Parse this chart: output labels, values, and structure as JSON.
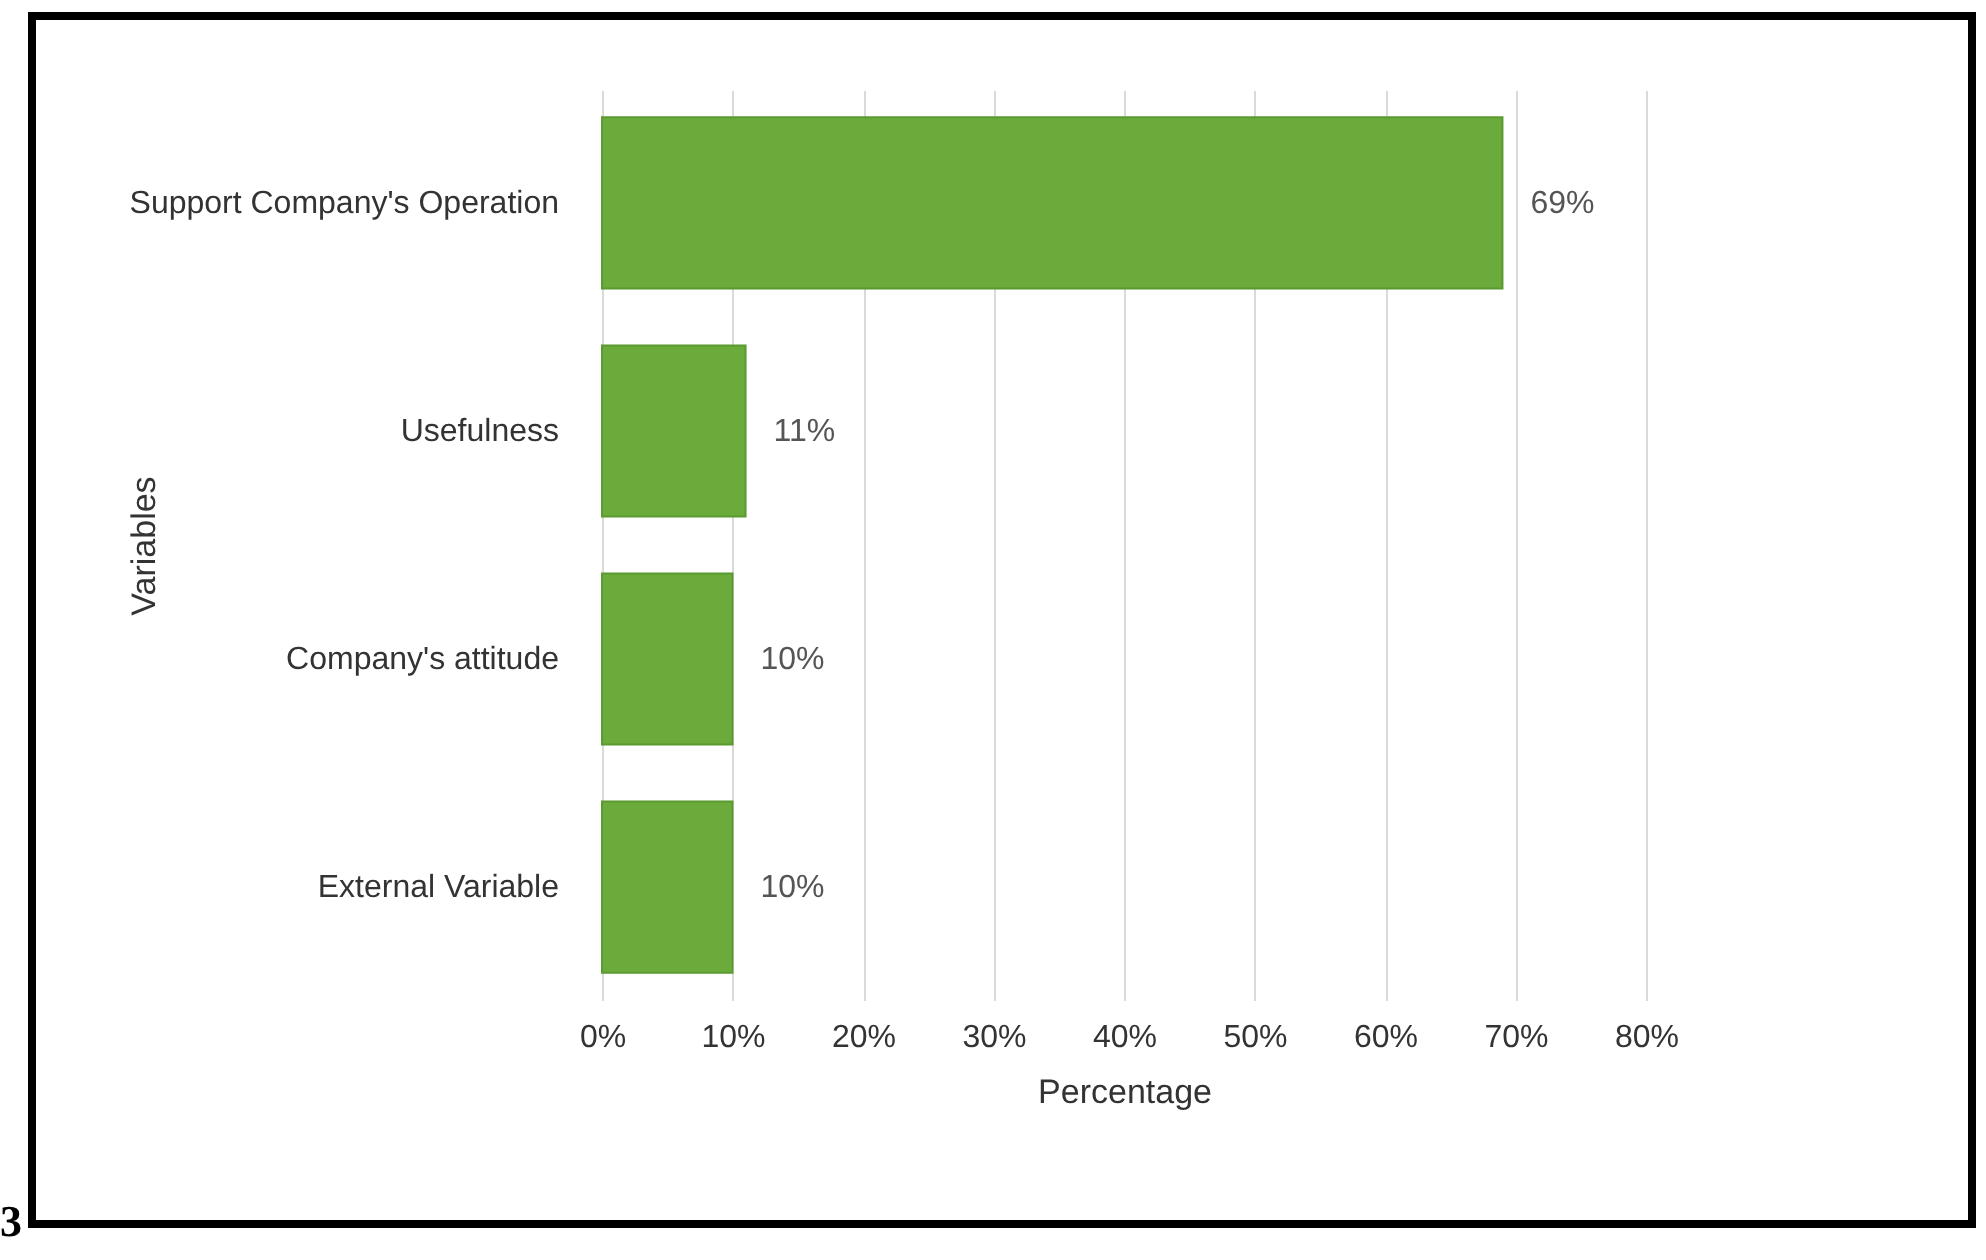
{
  "chart_data": {
    "type": "bar",
    "orientation": "horizontal",
    "xlabel": "Percentage",
    "ylabel": "Variables",
    "categories": [
      "Support Company's Operation",
      "Usefulness",
      "Company's attitude",
      "External Variable"
    ],
    "values": [
      69,
      11,
      10,
      10
    ],
    "value_labels": [
      "69%",
      "11%",
      "10%",
      "10%"
    ],
    "color": "#6aab3c",
    "xlim": [
      0,
      80
    ],
    "xticks": [
      {
        "value": 0,
        "label": "0%"
      },
      {
        "value": 10,
        "label": "10%"
      },
      {
        "value": 20,
        "label": "20%"
      },
      {
        "value": 30,
        "label": "30%"
      },
      {
        "value": 40,
        "label": "40%"
      },
      {
        "value": 50,
        "label": "50%"
      },
      {
        "value": 60,
        "label": "60%"
      },
      {
        "value": 70,
        "label": "70%"
      },
      {
        "value": 80,
        "label": "80%"
      }
    ],
    "grid": "x",
    "annotations": [
      "3"
    ]
  }
}
